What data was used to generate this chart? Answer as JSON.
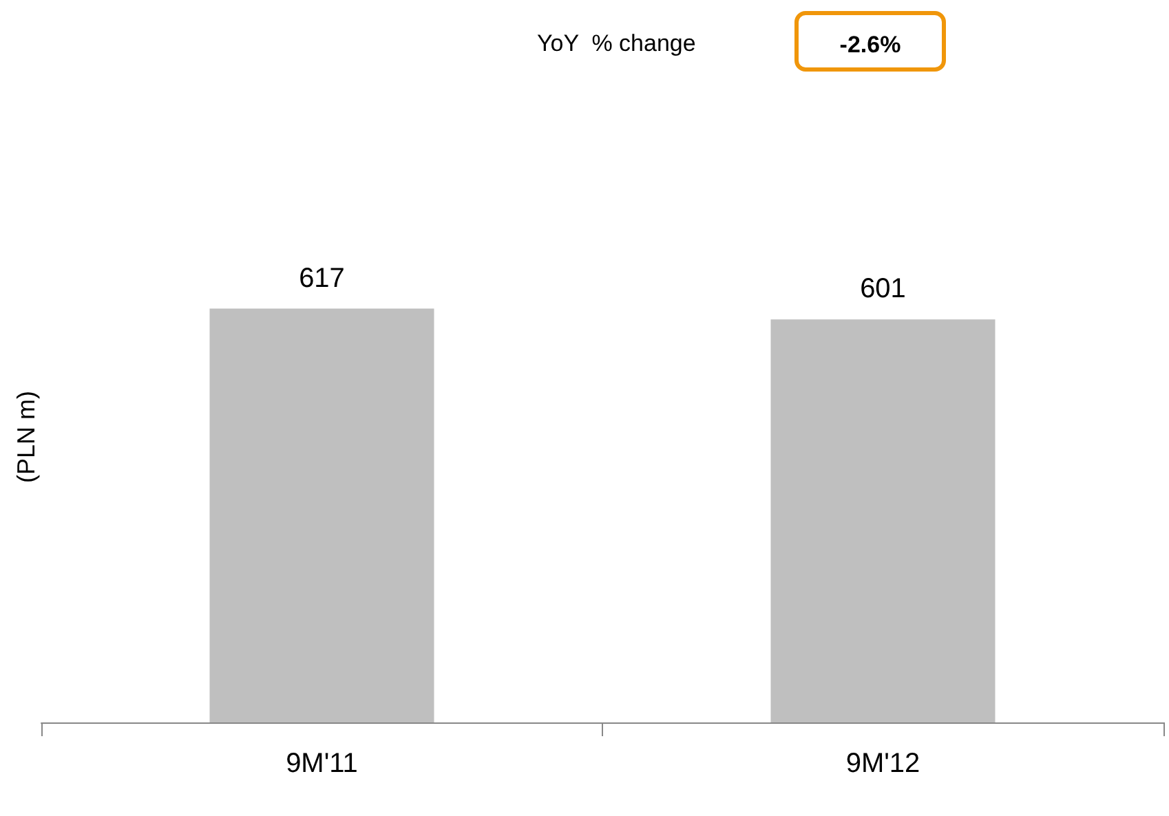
{
  "chart_data": {
    "type": "bar",
    "ylabel": "(PLN m)",
    "categories": [
      "9M'11",
      "9M'12"
    ],
    "values": [
      617,
      601
    ],
    "color": "#bfbfbf",
    "data_labels": true,
    "grid": false,
    "annotations": [
      "YoY  % change",
      "-2.6%"
    ]
  }
}
